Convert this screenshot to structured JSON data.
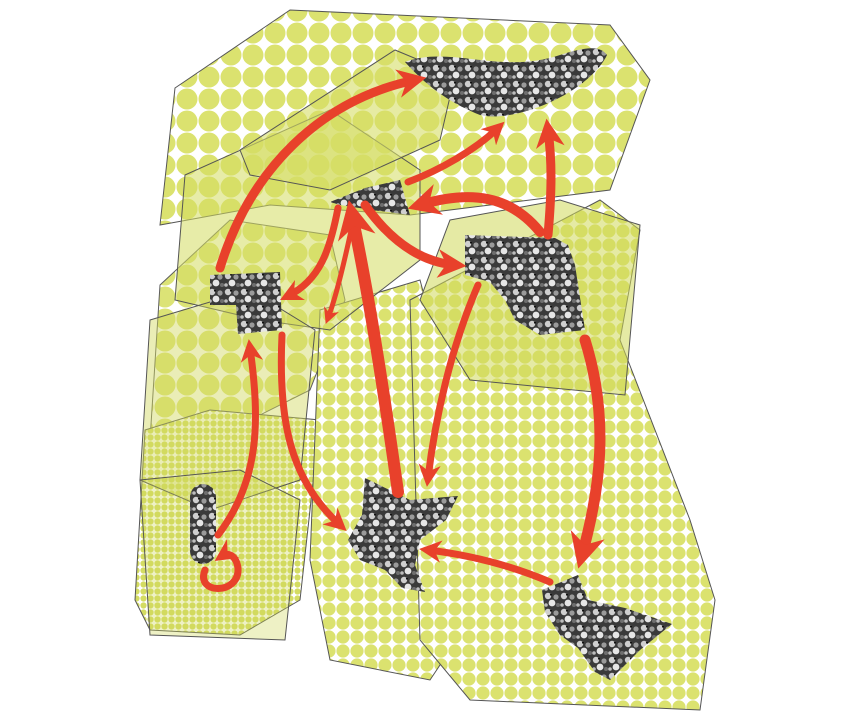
{
  "artwork": {
    "subject": "abstract-collage",
    "colors": {
      "panel_fill": "#d8e06a",
      "panel_dots": "#ffffff",
      "panel_fill_strong": "#cdd85a",
      "outline": "#555555",
      "arrow": "#e8412b",
      "crowd_dark": "#2a2a2a",
      "crowd_mid": "#8a8a8a",
      "crowd_light": "#d9d9d9"
    },
    "crowd_cutouts": [
      {
        "id": "top-arc"
      },
      {
        "id": "center-small"
      },
      {
        "id": "right-block"
      },
      {
        "id": "left-square"
      },
      {
        "id": "left-pill"
      },
      {
        "id": "bottom-center"
      },
      {
        "id": "bottom-right"
      }
    ],
    "arrows_count": 16
  }
}
